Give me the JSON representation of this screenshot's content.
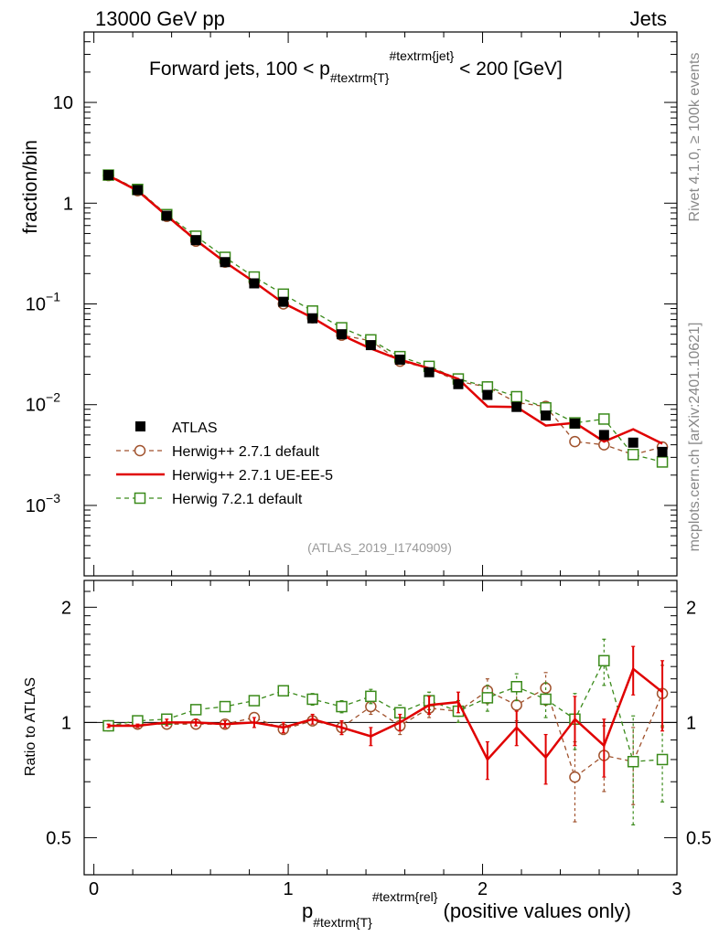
{
  "header": {
    "left": "13000 GeV pp",
    "right": "Jets"
  },
  "side_labels": {
    "rivet": "Rivet 4.1.0, ≥ 100k events",
    "mcplots": "mcplots.cern.ch [arXiv:2401.10621]"
  },
  "chart_data": {
    "type": "line",
    "title_parts": {
      "prefix": "Forward jets, 100 < p",
      "sub": "#textrm{T}",
      "sup": "#textrm{jet}",
      "suffix": " < 200 [GeV]"
    },
    "analysis_tag": "(ATLAS_2019_I1740909)",
    "xlabel_parts": {
      "main": "p",
      "sub": "#textrm{T}",
      "sup": "#textrm{rel}",
      "suffix": " (positive values only)"
    },
    "ylabel_main": "fraction/bin",
    "ylabel_ratio": "Ratio to ATLAS",
    "xlim": [
      -0.05,
      3.0
    ],
    "ylim_main": [
      0.0002,
      50
    ],
    "ylim_ratio": [
      0.4,
      2.35
    ],
    "xticks": [
      {
        "v": 0,
        "label": "0"
      },
      {
        "v": 1,
        "label": "1"
      },
      {
        "v": 2,
        "label": "2"
      },
      {
        "v": 3,
        "label": "3"
      }
    ],
    "yticks_main": [
      {
        "v": 10,
        "label": "10",
        "exp": ""
      },
      {
        "v": 1,
        "label": "1",
        "exp": ""
      },
      {
        "v": 0.1,
        "label": "10",
        "exp": "−1"
      },
      {
        "v": 0.01,
        "label": "10",
        "exp": "−2"
      },
      {
        "v": 0.001,
        "label": "10",
        "exp": "−3"
      }
    ],
    "yticks_ratio": [
      {
        "v": 0.5,
        "label": "0.5"
      },
      {
        "v": 1,
        "label": "1"
      },
      {
        "v": 2,
        "label": "2"
      }
    ],
    "x": [
      0.075,
      0.225,
      0.375,
      0.525,
      0.675,
      0.825,
      0.975,
      1.125,
      1.275,
      1.425,
      1.575,
      1.725,
      1.875,
      2.025,
      2.175,
      2.325,
      2.475,
      2.625,
      2.775,
      2.925
    ],
    "series": [
      {
        "name": "ATLAS",
        "style": "data",
        "color": "#000000",
        "values": [
          1.9,
          1.35,
          0.75,
          0.43,
          0.26,
          0.16,
          0.105,
          0.072,
          0.05,
          0.039,
          0.028,
          0.021,
          0.016,
          0.0125,
          0.0095,
          0.0078,
          0.0065,
          0.005,
          0.0042,
          0.0034
        ],
        "ratio": [
          1,
          1,
          1,
          1,
          1,
          1,
          1,
          1,
          1,
          1,
          1,
          1,
          1,
          1,
          1,
          1,
          1,
          1,
          1,
          1
        ],
        "ratio_err": [
          0,
          0,
          0,
          0,
          0,
          0,
          0,
          0,
          0,
          0,
          0,
          0,
          0,
          0,
          0,
          0,
          0,
          0,
          0,
          0
        ]
      },
      {
        "name": "Herwig++ 2.7.1 default",
        "style": "circle-dashed",
        "color": "#a0522d",
        "values": [
          1.88,
          1.33,
          0.74,
          0.42,
          0.26,
          0.165,
          0.1,
          0.073,
          0.049,
          0.043,
          0.027,
          0.023,
          0.017,
          0.015,
          0.0105,
          0.0096,
          0.0043,
          0.004,
          0.0032,
          0.0038
        ],
        "ratio": [
          0.98,
          0.99,
          0.99,
          0.99,
          0.99,
          1.03,
          0.96,
          1.01,
          0.97,
          1.1,
          0.98,
          1.09,
          1.07,
          1.21,
          1.11,
          1.23,
          0.72,
          0.82,
          0.79,
          1.19
        ],
        "ratio_err": [
          0.01,
          0.01,
          0.02,
          0.02,
          0.02,
          0.03,
          0.03,
          0.03,
          0.04,
          0.05,
          0.05,
          0.06,
          0.07,
          0.09,
          0.1,
          0.12,
          0.17,
          0.16,
          0.18,
          0.22
        ]
      },
      {
        "name": "Herwig++ 2.7.1 UE-EE-5",
        "style": "solid",
        "color": "#e00000",
        "values": [
          1.88,
          1.33,
          0.75,
          0.43,
          0.26,
          0.165,
          0.102,
          0.073,
          0.049,
          0.036,
          0.028,
          0.023,
          0.018,
          0.0096,
          0.0095,
          0.0062,
          0.0066,
          0.0043,
          0.0057,
          0.0041
        ],
        "ratio": [
          0.98,
          0.98,
          1.0,
          1.0,
          0.99,
          1.0,
          0.97,
          1.02,
          0.97,
          0.92,
          1.0,
          1.11,
          1.13,
          0.8,
          0.97,
          0.81,
          1.02,
          0.87,
          1.38,
          1.2
        ],
        "ratio_err": [
          0.01,
          0.01,
          0.02,
          0.02,
          0.02,
          0.03,
          0.03,
          0.03,
          0.04,
          0.05,
          0.05,
          0.06,
          0.07,
          0.09,
          0.1,
          0.12,
          0.15,
          0.15,
          0.2,
          0.25
        ]
      },
      {
        "name": "Herwig 7.2.1 default",
        "style": "square-dashed",
        "color": "#3a8a1a",
        "values": [
          1.9,
          1.37,
          0.77,
          0.47,
          0.29,
          0.185,
          0.125,
          0.085,
          0.058,
          0.044,
          0.03,
          0.024,
          0.018,
          0.015,
          0.012,
          0.0093,
          0.0066,
          0.0072,
          0.0032,
          0.0027
        ],
        "ratio": [
          0.98,
          1.01,
          1.02,
          1.08,
          1.1,
          1.14,
          1.21,
          1.15,
          1.1,
          1.17,
          1.06,
          1.14,
          1.07,
          1.16,
          1.24,
          1.15,
          1.02,
          1.45,
          0.79,
          0.8
        ],
        "ratio_err": [
          0.01,
          0.01,
          0.02,
          0.02,
          0.02,
          0.03,
          0.03,
          0.04,
          0.04,
          0.05,
          0.05,
          0.06,
          0.07,
          0.09,
          0.1,
          0.12,
          0.17,
          0.2,
          0.25,
          0.18
        ]
      }
    ]
  }
}
